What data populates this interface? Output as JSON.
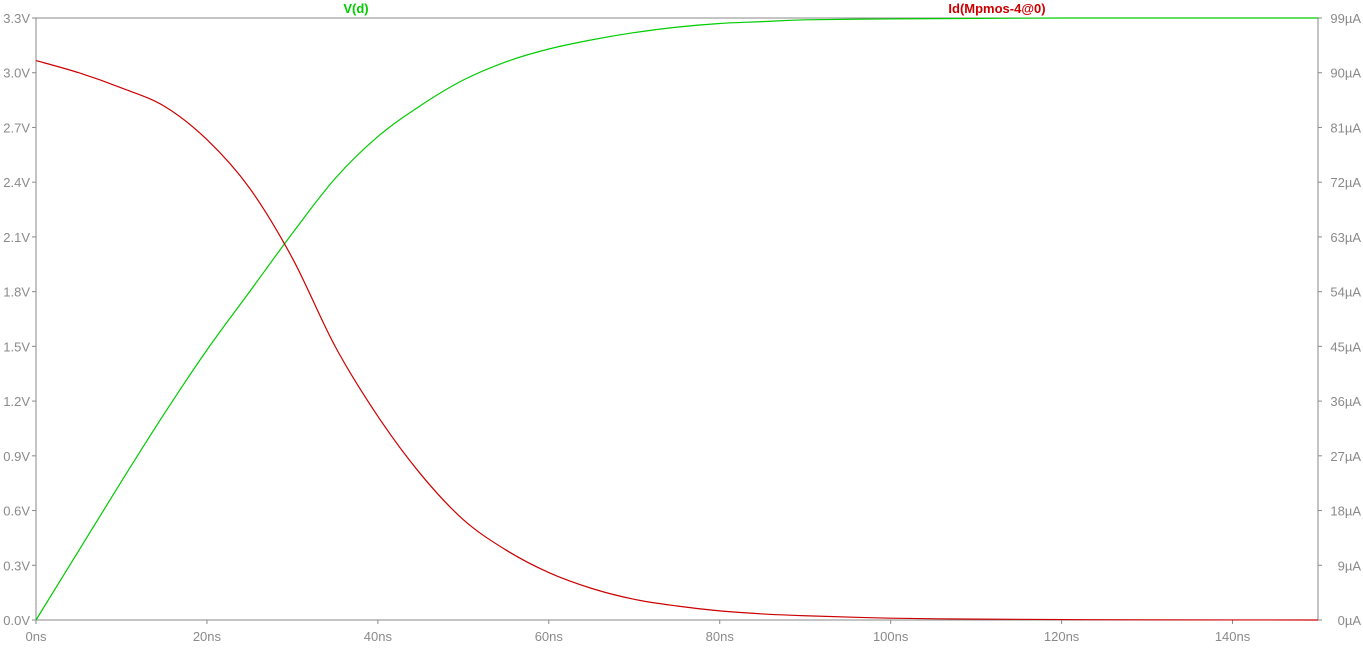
{
  "chart_data": {
    "type": "line",
    "title": "",
    "xlabel": "",
    "ylabel": "",
    "y2label": "",
    "grid": false,
    "background": "#ffffff",
    "axis_color": "#8a8a8a",
    "xlim": [
      0,
      150
    ],
    "ylim": [
      0,
      3.3
    ],
    "y2lim": [
      0,
      99
    ],
    "x_ticks": [
      "0ns",
      "20ns",
      "40ns",
      "60ns",
      "80ns",
      "100ns",
      "120ns",
      "140ns"
    ],
    "y_ticks": [
      "0.0V",
      "0.3V",
      "0.6V",
      "0.9V",
      "1.2V",
      "1.5V",
      "1.8V",
      "2.1V",
      "2.4V",
      "2.7V",
      "3.0V",
      "3.3V"
    ],
    "y2_ticks": [
      "0µA",
      "9µA",
      "18µA",
      "27µA",
      "36µA",
      "45µA",
      "54µA",
      "63µA",
      "72µA",
      "81µA",
      "90µA",
      "99µA"
    ],
    "series": [
      {
        "name": "V(d)",
        "axis": "left",
        "color": "#00cc00",
        "points": [
          [
            0,
            0
          ],
          [
            5,
            0.38
          ],
          [
            10,
            0.76
          ],
          [
            15,
            1.13
          ],
          [
            20,
            1.48
          ],
          [
            25,
            1.8
          ],
          [
            30,
            2.12
          ],
          [
            35,
            2.42
          ],
          [
            40,
            2.65
          ],
          [
            45,
            2.82
          ],
          [
            50,
            2.96
          ],
          [
            55,
            3.06
          ],
          [
            60,
            3.13
          ],
          [
            65,
            3.18
          ],
          [
            70,
            3.22
          ],
          [
            75,
            3.25
          ],
          [
            80,
            3.27
          ],
          [
            85,
            3.28
          ],
          [
            90,
            3.29
          ],
          [
            100,
            3.295
          ],
          [
            110,
            3.298
          ],
          [
            120,
            3.3
          ],
          [
            130,
            3.3
          ],
          [
            150,
            3.3
          ]
        ]
      },
      {
        "name": "Id(Mpmos-4@0)",
        "axis": "right",
        "color": "#cc0000",
        "points": [
          [
            0,
            92
          ],
          [
            5,
            90
          ],
          [
            10,
            87.5
          ],
          [
            15,
            84.5
          ],
          [
            20,
            79
          ],
          [
            25,
            71
          ],
          [
            30,
            59.5
          ],
          [
            35,
            45
          ],
          [
            40,
            33.5
          ],
          [
            45,
            24
          ],
          [
            50,
            16.5
          ],
          [
            55,
            11.5
          ],
          [
            60,
            7.8
          ],
          [
            65,
            5.2
          ],
          [
            70,
            3.4
          ],
          [
            75,
            2.3
          ],
          [
            80,
            1.5
          ],
          [
            85,
            1.0
          ],
          [
            90,
            0.7
          ],
          [
            100,
            0.3
          ],
          [
            110,
            0.15
          ],
          [
            120,
            0.07
          ],
          [
            130,
            0.03
          ],
          [
            150,
            0
          ]
        ]
      }
    ]
  }
}
